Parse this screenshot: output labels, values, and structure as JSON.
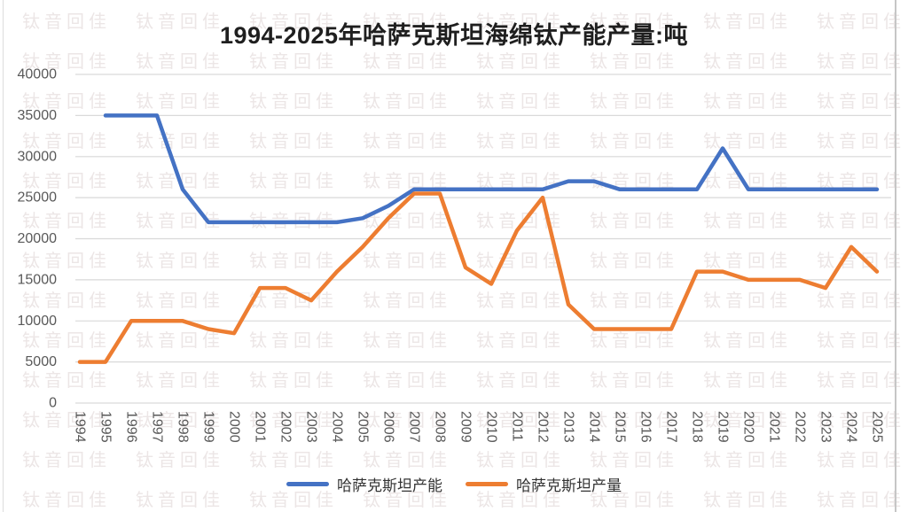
{
  "page": {
    "watermark_text": "钛音回佳"
  },
  "chart_data": {
    "type": "line",
    "title": "1994-2025年哈萨克斯坦海绵钛产能产量:吨",
    "unit": "吨",
    "x_labels": [
      "1994",
      "1995",
      "1996",
      "1997",
      "1998",
      "1999",
      "2000",
      "2001",
      "2002",
      "2003",
      "2004",
      "2005",
      "2006",
      "2007",
      "2008",
      "2009",
      "2010",
      "2011",
      "2012",
      "2013",
      "2014",
      "2015",
      "2016",
      "2017",
      "2018",
      "2019",
      "2020",
      "2021",
      "2022",
      "2023",
      "2024",
      "2025"
    ],
    "y_ticks": [
      40000,
      35000,
      30000,
      25000,
      20000,
      15000,
      10000,
      5000,
      0
    ],
    "ylim": [
      0,
      40000
    ],
    "grid": true,
    "legend_position": "bottom",
    "gridline_color": "#d9d9d9",
    "axis_label_color": "#595959",
    "series": [
      {
        "name": "哈萨克斯坦产能",
        "color": "#4472C4",
        "values": [
          null,
          35000,
          35000,
          35000,
          26000,
          22000,
          22000,
          22000,
          22000,
          22000,
          22000,
          22500,
          24000,
          26000,
          26000,
          26000,
          26000,
          26000,
          26000,
          27000,
          27000,
          26000,
          26000,
          26000,
          26000,
          31000,
          26000,
          26000,
          26000,
          26000,
          26000,
          26000
        ]
      },
      {
        "name": "哈萨克斯坦产量",
        "color": "#ED7D31",
        "values": [
          5000,
          5000,
          10000,
          10000,
          10000,
          9000,
          8500,
          14000,
          14000,
          12500,
          16000,
          19000,
          22500,
          25500,
          25500,
          16500,
          14500,
          21000,
          25000,
          12000,
          9000,
          9000,
          9000,
          9000,
          16000,
          16000,
          15000,
          15000,
          15000,
          14000,
          19000,
          16000
        ]
      }
    ]
  }
}
